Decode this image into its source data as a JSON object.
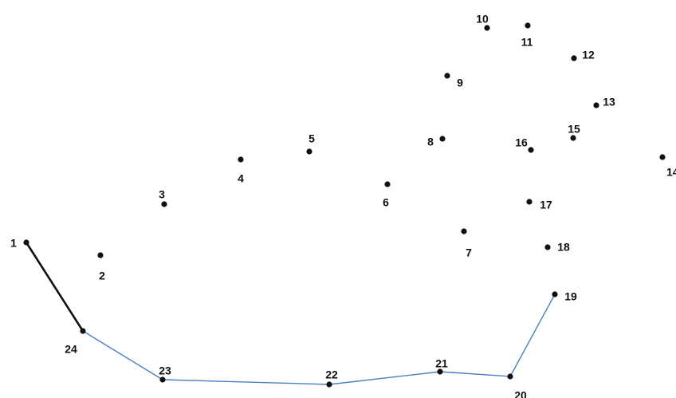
{
  "puzzle": {
    "type": "connect-the-dots",
    "colors": {
      "dot": "#111111",
      "label": "#111111",
      "line_drawn_black": "#111111",
      "line_drawn_blue": "#4a7fc1"
    },
    "dots": [
      {
        "n": "1"
      },
      {
        "n": "2"
      },
      {
        "n": "3"
      },
      {
        "n": "4"
      },
      {
        "n": "5"
      },
      {
        "n": "6"
      },
      {
        "n": "7"
      },
      {
        "n": "8"
      },
      {
        "n": "9"
      },
      {
        "n": "10"
      },
      {
        "n": "11"
      },
      {
        "n": "12"
      },
      {
        "n": "13"
      },
      {
        "n": "14"
      },
      {
        "n": "15"
      },
      {
        "n": "16"
      },
      {
        "n": "17"
      },
      {
        "n": "18"
      },
      {
        "n": "19"
      },
      {
        "n": "20"
      },
      {
        "n": "21"
      },
      {
        "n": "22"
      },
      {
        "n": "23"
      },
      {
        "n": "24"
      }
    ],
    "drawn_segments": [
      {
        "from": "1",
        "to": "24",
        "color": "black"
      },
      {
        "from": "24",
        "to": "23",
        "color": "blue"
      },
      {
        "from": "23",
        "to": "22",
        "color": "blue"
      },
      {
        "from": "22",
        "to": "21",
        "color": "blue"
      },
      {
        "from": "21",
        "to": "20",
        "color": "blue"
      },
      {
        "from": "20",
        "to": "19",
        "color": "blue"
      }
    ]
  }
}
